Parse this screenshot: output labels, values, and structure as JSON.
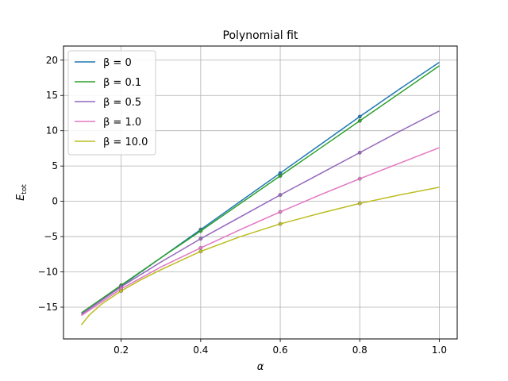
{
  "chart_data": {
    "type": "line",
    "title": "Polynomial fit",
    "xlabel": "α",
    "ylabel": "E",
    "ylabel_sub": "tot",
    "xlim": [
      0.055,
      1.045
    ],
    "ylim": [
      -19.5,
      22.0
    ],
    "xticks": [
      0.2,
      0.4,
      0.6,
      0.8,
      1.0
    ],
    "xtick_labels": [
      "0.2",
      "0.4",
      "0.6",
      "0.8",
      "1.0"
    ],
    "yticks": [
      -15,
      -10,
      -5,
      0,
      5,
      10,
      15,
      20
    ],
    "ytick_labels": [
      "−15",
      "−10",
      "−5",
      "0",
      "5",
      "10",
      "15",
      "20"
    ],
    "grid": true,
    "legend_position": "top-left",
    "series": [
      {
        "name": "β = 0",
        "color": "#1f77b4",
        "x": [
          0.1,
          0.2,
          0.3,
          0.4,
          0.5,
          0.6,
          0.7,
          0.8,
          0.9,
          1.0
        ],
        "y": [
          -16.0,
          -12.0,
          -8.0,
          -4.0,
          0.0,
          4.0,
          8.0,
          12.0,
          15.9,
          19.7
        ],
        "points_x": [
          0.2,
          0.4,
          0.6,
          0.8
        ],
        "points_y": [
          -12.0,
          -4.0,
          4.0,
          12.0
        ]
      },
      {
        "name": "β = 0.1",
        "color": "#2ca02c",
        "x": [
          0.1,
          0.2,
          0.3,
          0.4,
          0.5,
          0.6,
          0.7,
          0.8,
          0.9,
          1.0
        ],
        "y": [
          -15.8,
          -11.9,
          -8.0,
          -4.2,
          -0.3,
          3.6,
          7.5,
          11.4,
          15.3,
          19.2
        ],
        "points_x": [
          0.2,
          0.4,
          0.6,
          0.8
        ],
        "points_y": [
          -11.9,
          -4.2,
          3.6,
          11.4
        ]
      },
      {
        "name": "β = 0.5",
        "color": "#9467bd",
        "x": [
          0.1,
          0.2,
          0.3,
          0.4,
          0.5,
          0.6,
          0.7,
          0.8,
          0.9,
          1.0
        ],
        "y": [
          -16.0,
          -12.1,
          -8.6,
          -5.3,
          -2.2,
          0.9,
          3.9,
          6.9,
          9.9,
          12.8
        ],
        "points_x": [
          0.2,
          0.4,
          0.6,
          0.8
        ],
        "points_y": [
          -12.1,
          -5.3,
          0.9,
          6.9
        ]
      },
      {
        "name": "β = 1.0",
        "color": "#e377c2",
        "x": [
          0.1,
          0.2,
          0.3,
          0.4,
          0.5,
          0.6,
          0.7,
          0.8,
          0.9,
          1.0
        ],
        "y": [
          -16.2,
          -12.4,
          -9.3,
          -6.6,
          -4.0,
          -1.5,
          0.9,
          3.2,
          5.4,
          7.6
        ],
        "points_x": [
          0.2,
          0.4,
          0.6,
          0.8
        ],
        "points_y": [
          -12.4,
          -6.6,
          -1.5,
          3.2
        ]
      },
      {
        "name": "β = 10.0",
        "color": "#bcbd22",
        "x": [
          0.1,
          0.12,
          0.15,
          0.2,
          0.25,
          0.3,
          0.4,
          0.5,
          0.6,
          0.7,
          0.8,
          0.9,
          1.0
        ],
        "y": [
          -17.5,
          -16.1,
          -14.6,
          -12.7,
          -11.1,
          -9.7,
          -7.1,
          -5.0,
          -3.2,
          -1.7,
          -0.3,
          0.9,
          2.0
        ],
        "points_x": [
          0.2,
          0.4,
          0.6,
          0.8
        ],
        "points_y": [
          -12.7,
          -7.1,
          -3.2,
          -0.3
        ]
      }
    ]
  }
}
